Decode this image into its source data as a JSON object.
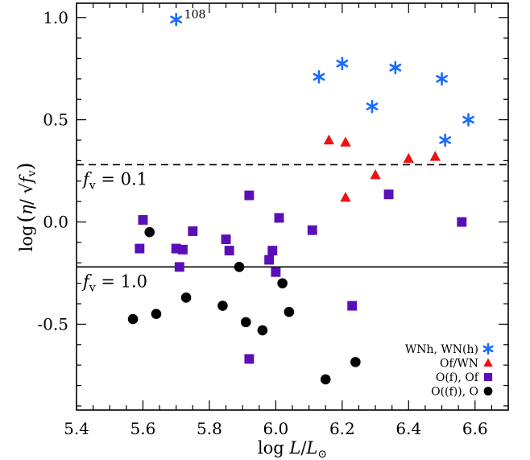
{
  "chart_data": {
    "type": "scatter",
    "title": "",
    "xlabel": {
      "text": "log ",
      "var": "L",
      "slash": "/",
      "var2": "L",
      "sub": "⊙"
    },
    "ylabel": {
      "pre": "log",
      "lparen": "(",
      "eta": "η",
      "slash": "/ ",
      "fv": "f",
      "fvsub": "v",
      "rparen": ")"
    },
    "xlim": [
      5.4,
      6.7
    ],
    "ylim": [
      -0.92,
      1.07
    ],
    "xticks": [
      5.4,
      5.6,
      5.8,
      6.0,
      6.2,
      6.4,
      6.6
    ],
    "xtick_labels": [
      "5.4",
      "5.6",
      "5.8",
      "6.0",
      "6.2",
      "6.4",
      "6.6"
    ],
    "yticks": [
      -0.5,
      0.0,
      0.5,
      1.0
    ],
    "ytick_labels": [
      "-0.5",
      "0.0",
      "0.5",
      "1.0"
    ],
    "grid": false,
    "legend_position": "bottom-right",
    "reference_lines": [
      {
        "y": 0.28,
        "style": "dashed",
        "label_var": "f",
        "label_sub": "v",
        "label_text": " = 0.1"
      },
      {
        "y": -0.22,
        "style": "solid",
        "label_var": "f",
        "label_sub": "v",
        "label_text": " = 1.0"
      }
    ],
    "annotations": [
      {
        "text": "108",
        "x": 5.7,
        "y": 0.99
      }
    ],
    "series": [
      {
        "name": "WNh, WN(h)",
        "marker": "asterisk",
        "color": "#1a6cff",
        "x": [
          5.7,
          6.13,
          6.2,
          6.29,
          6.36,
          6.5,
          6.51,
          6.58
        ],
        "y": [
          0.99,
          0.71,
          0.775,
          0.565,
          0.755,
          0.7,
          0.4,
          0.5
        ]
      },
      {
        "name": "Of/WN",
        "marker": "triangle",
        "color": "#ee1111",
        "x": [
          6.16,
          6.21,
          6.21,
          6.3,
          6.4,
          6.48
        ],
        "y": [
          0.4,
          0.39,
          0.12,
          0.23,
          0.31,
          0.32
        ]
      },
      {
        "name": "O(f), Of",
        "marker": "square",
        "color": "#5a0fb8",
        "x": [
          5.59,
          5.6,
          5.7,
          5.71,
          5.72,
          5.75,
          5.85,
          5.86,
          5.92,
          5.92,
          5.98,
          5.99,
          6.0,
          6.01,
          6.11,
          6.23,
          6.34,
          6.56
        ],
        "y": [
          -0.13,
          0.01,
          -0.13,
          -0.22,
          -0.135,
          -0.045,
          -0.085,
          -0.14,
          0.13,
          -0.67,
          -0.185,
          -0.14,
          -0.245,
          0.02,
          -0.04,
          -0.41,
          0.135,
          0.0
        ]
      },
      {
        "name": "O((f)), O",
        "marker": "circle",
        "color": "#000000",
        "x": [
          5.57,
          5.62,
          5.64,
          5.73,
          5.84,
          5.89,
          5.91,
          5.96,
          6.02,
          6.04,
          6.15,
          6.24
        ],
        "y": [
          -0.475,
          -0.05,
          -0.45,
          -0.37,
          -0.41,
          -0.22,
          -0.49,
          -0.53,
          -0.3,
          -0.44,
          -0.77,
          -0.685
        ]
      }
    ]
  }
}
